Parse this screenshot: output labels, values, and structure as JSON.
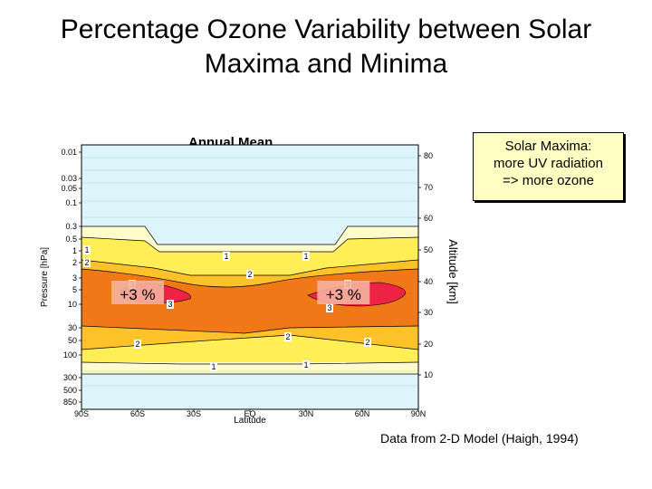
{
  "slide": {
    "title_lines": [
      "Percentage Ozone Variability between Solar",
      "Maxima and Minima"
    ],
    "credit": "Data from 2-D Model (Haigh, 1994)"
  },
  "note": {
    "lines": [
      "Solar Maxima:",
      "more UV radiation",
      "=> more ozone"
    ]
  },
  "chart_data": {
    "type": "heatmap",
    "title": "Annual Mean",
    "xlabel": "Latitude",
    "ylabel": "Pressure [hPa]",
    "y2label": "Altitude [km]",
    "x_ticks": [
      "90S",
      "60S",
      "30S",
      "EQ",
      "30N",
      "60N",
      "90N"
    ],
    "xlim": [
      -90,
      90
    ],
    "y_ticks": [
      "0.01",
      "0.03",
      "0.05",
      "0.1",
      "0.3",
      "0.5",
      "1",
      "2",
      "3",
      "5",
      "10",
      "30",
      "50",
      "100",
      "300",
      "500",
      "850"
    ],
    "y2_ticks": [
      "80",
      "70",
      "60",
      "50",
      "40",
      "30",
      "20",
      "10"
    ],
    "contour_levels": [
      1,
      2,
      3
    ],
    "contour_labels": [
      "1",
      "1",
      "1",
      "1",
      "1",
      "2",
      "2",
      "2",
      "2",
      "2",
      "3",
      "3",
      "3",
      "3"
    ],
    "annotations": [
      {
        "text": "+3 %",
        "lat": -60,
        "pressure_hPa": 5
      },
      {
        "text": "+3 %",
        "lat": 50,
        "pressure_hPa": 5
      }
    ],
    "colors": {
      "band_lt1": "#fffccc",
      "band_1_2": "#ffee55",
      "band_2_3": "#fdc22a",
      "band_gt3": "#f07818",
      "peak": "#ee2244",
      "outer": "#ddf4fb"
    }
  }
}
